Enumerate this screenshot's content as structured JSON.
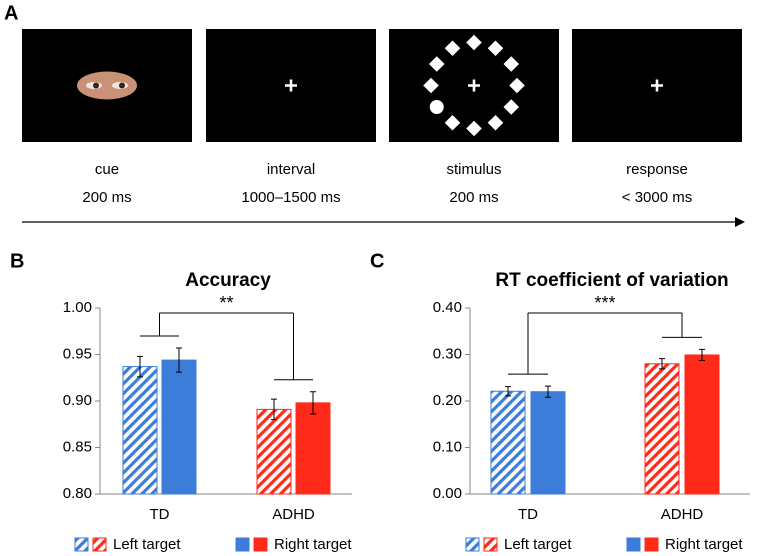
{
  "panel_a": {
    "label": "A",
    "frames": [
      {
        "name": "cue",
        "duration": "200 ms"
      },
      {
        "name": "interval",
        "duration": "1000–1500 ms"
      },
      {
        "name": "stimulus",
        "duration": "200 ms"
      },
      {
        "name": "response",
        "duration": "< 3000 ms"
      }
    ]
  },
  "chart_data": [
    {
      "panel": "B",
      "type": "bar",
      "title": "Accuracy",
      "categories": [
        "TD",
        "ADHD"
      ],
      "colors": [
        "#3b7dd8",
        "#ff2a1a"
      ],
      "series": [
        {
          "name": "Left target",
          "hatched": true,
          "values": [
            0.937,
            0.891
          ],
          "errors": [
            0.011,
            0.011
          ]
        },
        {
          "name": "Right target",
          "hatched": false,
          "values": [
            0.944,
            0.898
          ],
          "errors": [
            0.013,
            0.012
          ]
        }
      ],
      "ylim": [
        0.8,
        1.0
      ],
      "yticks": [
        {
          "value": 0.8,
          "label": "0.80"
        },
        {
          "value": 0.85,
          "label": "0.85"
        },
        {
          "value": 0.9,
          "label": "0.90"
        },
        {
          "value": 0.95,
          "label": "0.95"
        },
        {
          "value": 1.0,
          "label": "1.00"
        }
      ],
      "annotation": "**"
    },
    {
      "panel": "C",
      "type": "bar",
      "title": "RT coefficient of variation",
      "categories": [
        "TD",
        "ADHD"
      ],
      "colors": [
        "#3b7dd8",
        "#ff2a1a"
      ],
      "series": [
        {
          "name": "Left target",
          "hatched": true,
          "values": [
            0.221,
            0.28
          ],
          "errors": [
            0.01,
            0.011
          ]
        },
        {
          "name": "Right target",
          "hatched": false,
          "values": [
            0.22,
            0.299
          ],
          "errors": [
            0.012,
            0.012
          ]
        }
      ],
      "ylim": [
        0,
        0.4
      ],
      "yticks": [
        {
          "value": 0,
          "label": "0.00"
        },
        {
          "value": 0.1,
          "label": "0.10"
        },
        {
          "value": 0.2,
          "label": "0.20"
        },
        {
          "value": 0.3,
          "label": "0.30"
        },
        {
          "value": 0.4,
          "label": "0.40"
        }
      ],
      "annotation": "***"
    }
  ]
}
